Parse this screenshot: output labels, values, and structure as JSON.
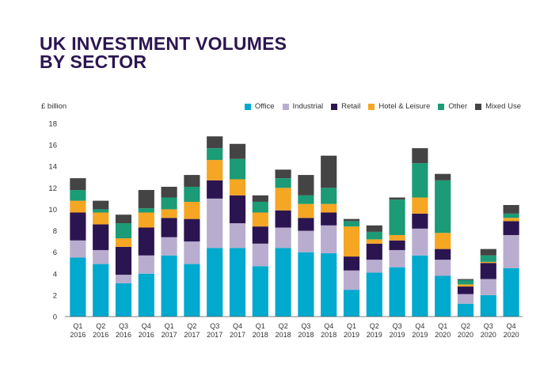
{
  "title_lines": [
    "UK INVESTMENT VOLUMES",
    "BY SECTOR"
  ],
  "chart_data": {
    "type": "bar",
    "stacked": true,
    "title": "UK INVESTMENT VOLUMES BY SECTOR",
    "ylabel": "£ billion",
    "xlabel": "",
    "ylim": [
      0,
      18
    ],
    "yticks": [
      0,
      2,
      4,
      6,
      8,
      10,
      12,
      14,
      16,
      18
    ],
    "grid": false,
    "legend_position": "top-right",
    "categories": [
      [
        "Q1",
        "2016"
      ],
      [
        "Q2",
        "2016"
      ],
      [
        "Q3",
        "2016"
      ],
      [
        "Q4",
        "2016"
      ],
      [
        "Q1",
        "2017"
      ],
      [
        "Q2",
        "2017"
      ],
      [
        "Q3",
        "2017"
      ],
      [
        "Q4",
        "2017"
      ],
      [
        "Q1",
        "2018"
      ],
      [
        "Q2",
        "2018"
      ],
      [
        "Q3",
        "2018"
      ],
      [
        "Q4",
        "2018"
      ],
      [
        "Q1",
        "2019"
      ],
      [
        "Q2",
        "2019"
      ],
      [
        "Q3",
        "2019"
      ],
      [
        "Q4",
        "2019"
      ],
      [
        "Q1",
        "2020"
      ],
      [
        "Q2",
        "2020"
      ],
      [
        "Q3",
        "2020"
      ],
      [
        "Q4",
        "2020"
      ]
    ],
    "series": [
      {
        "name": "Office",
        "color": "#00a9ce",
        "values": [
          5.5,
          4.9,
          3.1,
          4.0,
          5.7,
          4.9,
          6.4,
          6.4,
          4.7,
          6.4,
          6.0,
          5.9,
          2.5,
          4.1,
          4.6,
          5.7,
          3.8,
          1.2,
          2.0,
          4.5
        ]
      },
      {
        "name": "Industrial",
        "color": "#b8adcf",
        "values": [
          1.6,
          1.3,
          0.8,
          1.7,
          1.7,
          2.1,
          4.6,
          2.3,
          2.1,
          1.9,
          2.0,
          2.6,
          1.8,
          1.2,
          1.6,
          2.5,
          1.5,
          0.9,
          1.5,
          3.1
        ]
      },
      {
        "name": "Retail",
        "color": "#2b1551",
        "values": [
          2.6,
          2.4,
          2.6,
          2.6,
          1.8,
          2.1,
          1.7,
          2.6,
          1.6,
          1.6,
          1.2,
          1.2,
          1.3,
          1.5,
          0.9,
          1.4,
          1.0,
          0.7,
          1.5,
          1.3
        ]
      },
      {
        "name": "Hotel & Leisure",
        "color": "#f5a623",
        "values": [
          1.1,
          1.1,
          0.8,
          1.4,
          0.8,
          1.6,
          1.9,
          1.5,
          1.3,
          2.1,
          1.3,
          0.8,
          2.8,
          0.4,
          0.5,
          1.5,
          1.5,
          0.2,
          0.1,
          0.3
        ]
      },
      {
        "name": "Other",
        "color": "#1b9b76",
        "values": [
          1.0,
          0.3,
          1.4,
          0.4,
          1.1,
          1.4,
          1.1,
          1.9,
          1.0,
          0.9,
          0.8,
          1.5,
          0.5,
          0.7,
          3.3,
          3.2,
          4.9,
          0.4,
          0.6,
          0.4
        ]
      },
      {
        "name": "Mixed Use",
        "color": "#444444",
        "values": [
          1.1,
          0.8,
          0.8,
          1.7,
          1.0,
          1.1,
          1.1,
          1.4,
          0.6,
          0.8,
          1.9,
          3.0,
          0.2,
          0.6,
          0.2,
          1.4,
          0.6,
          0.1,
          0.6,
          0.8
        ]
      }
    ]
  }
}
